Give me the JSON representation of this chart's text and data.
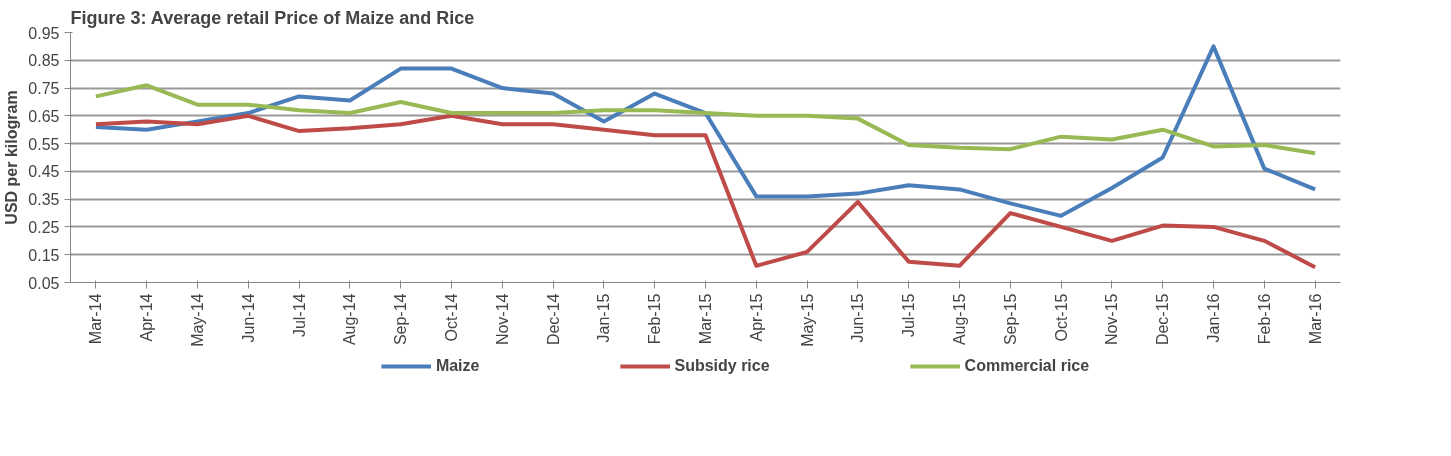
{
  "chart_data": {
    "type": "line",
    "title": "Figure 3: Average retail Price of Maize and Rice",
    "ylabel": "USD per kilogram",
    "categories": [
      "Mar-14",
      "Apr-14",
      "May-14",
      "Jun-14",
      "Jul-14",
      "Aug-14",
      "Sep-14",
      "Oct-14",
      "Nov-14",
      "Dec-14",
      "Jan-15",
      "Feb-15",
      "Mar-15",
      "Apr-15",
      "May-15",
      "Jun-15",
      "Jul-15",
      "Aug-15",
      "Sep-15",
      "Oct-15",
      "Nov-15",
      "Dec-15",
      "Jan-16",
      "Feb-16",
      "Mar-16"
    ],
    "series": [
      {
        "name": "Maize",
        "color": "#4a7ebb",
        "values": [
          0.61,
          0.6,
          0.63,
          0.66,
          0.72,
          0.705,
          0.82,
          0.82,
          0.75,
          0.73,
          0.63,
          0.73,
          0.66,
          0.36,
          0.36,
          0.37,
          0.4,
          0.385,
          0.335,
          0.29,
          0.39,
          0.5,
          0.9,
          0.46,
          0.385
        ]
      },
      {
        "name": "Subsidy rice",
        "color": "#be4b48",
        "values": [
          0.62,
          0.63,
          0.62,
          0.65,
          0.595,
          0.605,
          0.62,
          0.65,
          0.62,
          0.62,
          0.6,
          0.58,
          0.58,
          0.11,
          0.16,
          0.34,
          0.125,
          0.11,
          0.3,
          0.25,
          0.2,
          0.255,
          0.25,
          0.2,
          0.105
        ]
      },
      {
        "name": "Commercial rice",
        "color": "#98b954",
        "values": [
          0.72,
          0.76,
          0.69,
          0.69,
          0.67,
          0.66,
          0.7,
          0.66,
          0.66,
          0.66,
          0.67,
          0.67,
          0.66,
          0.65,
          0.65,
          0.64,
          0.545,
          0.535,
          0.53,
          0.575,
          0.565,
          0.6,
          0.54,
          0.545,
          0.515
        ]
      }
    ],
    "ylim": [
      0.05,
      0.95
    ],
    "yticks": [
      0.05,
      0.15,
      0.25,
      0.35,
      0.45,
      0.55,
      0.65,
      0.75,
      0.85,
      0.95
    ],
    "grid": "y",
    "legend": "bottom",
    "line_style": "solid"
  }
}
